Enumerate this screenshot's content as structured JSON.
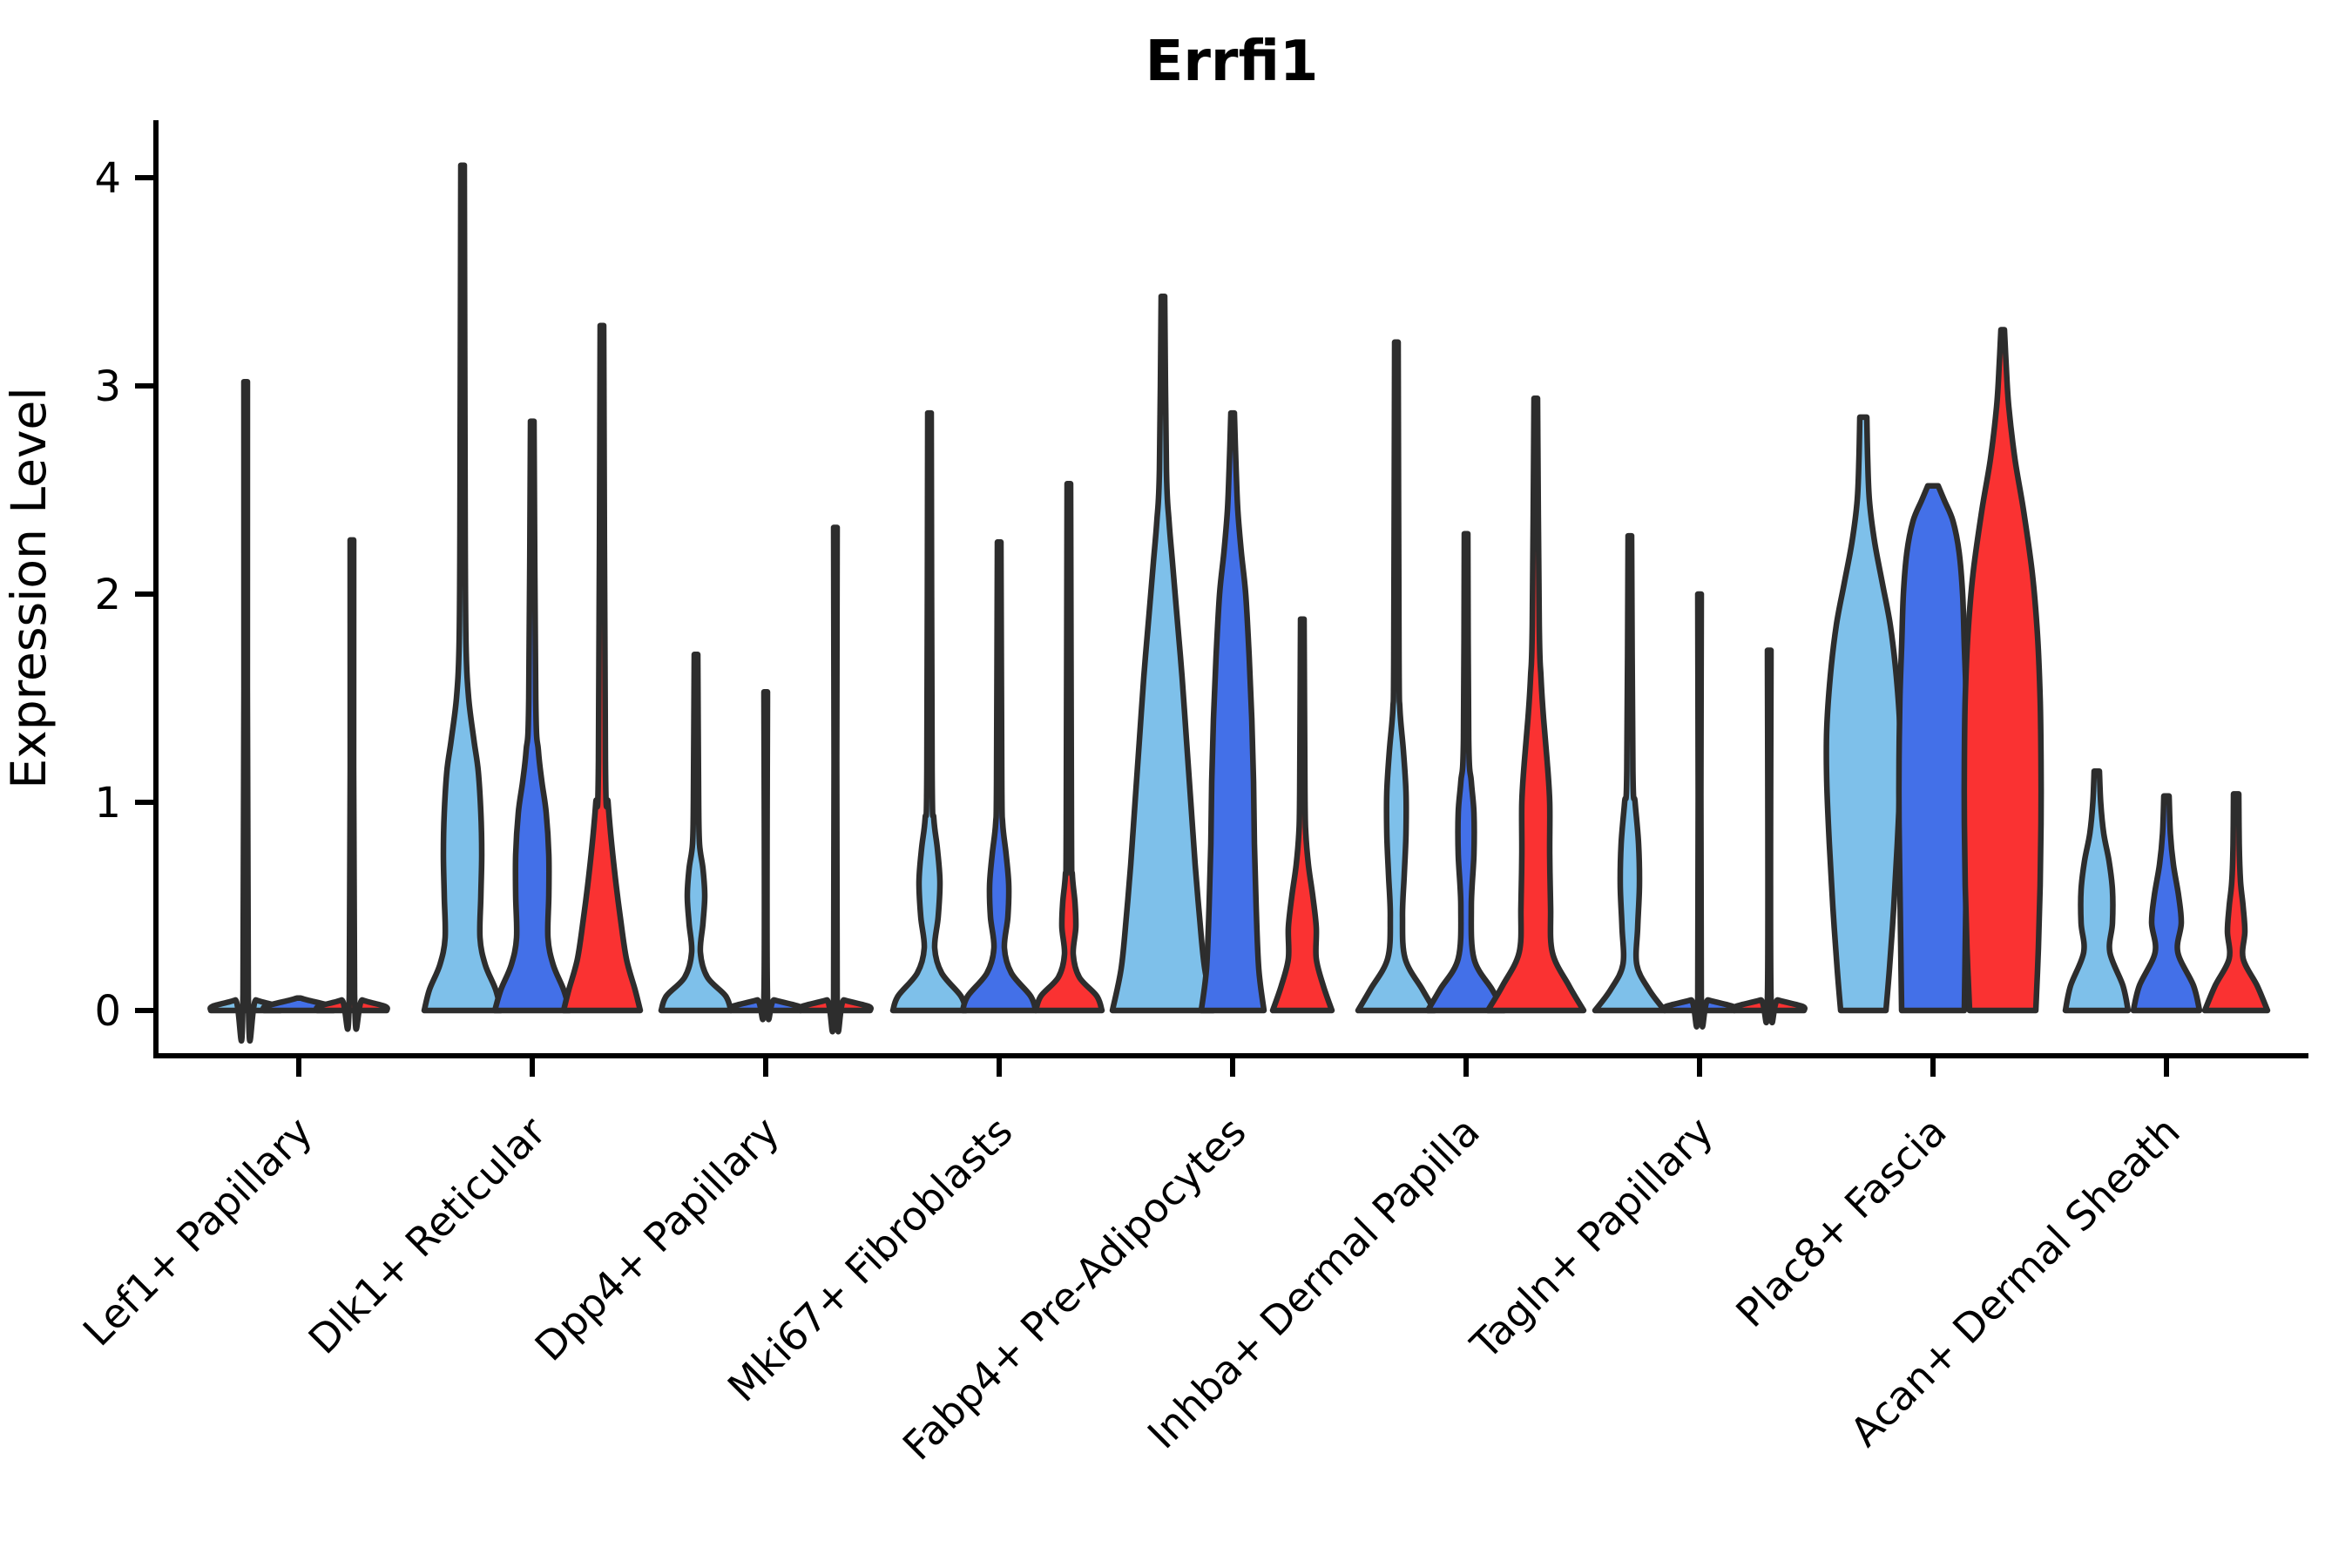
{
  "chart_data": {
    "type": "violin",
    "title": "Errfi1",
    "ylabel": "Expression Level",
    "xlabel": "",
    "ylim": [
      -0.22,
      4.3
    ],
    "yticks": [
      0,
      1,
      2,
      3,
      4
    ],
    "grid": false,
    "legend": "none",
    "categories": [
      "Lef1+ Papillary",
      "Dlk1+ Reticular",
      "Dpp4+ Papillary",
      "Mki67+ Fibroblasts",
      "Fabp4+ Pre-Adipocytes",
      "Inhba+ Dermal Papilla",
      "Tagln+ Papillary",
      "Plac8+ Fascia",
      "Acan+ Dermal Sheath"
    ],
    "series": [
      {
        "name": "light-blue",
        "color": "#7EC0EA",
        "max_expression": [
          3.02,
          4.06,
          1.71,
          2.87,
          3.43,
          3.21,
          2.28,
          2.85,
          1.15
        ]
      },
      {
        "name": "blue",
        "color": "#4370E8",
        "max_expression": [
          0.06,
          2.83,
          1.53,
          2.25,
          2.87,
          2.29,
          2.0,
          2.52,
          1.03
        ]
      },
      {
        "name": "red",
        "color": "#FA3232",
        "max_expression": [
          2.26,
          3.29,
          2.32,
          2.53,
          1.88,
          2.94,
          1.73,
          3.27,
          1.04
        ]
      }
    ],
    "violin_profiles_note": "each violin = list of [expression_value, half_width_px] from bottom (0) to max",
    "profiles": [
      [
        [
          [
            0,
            40
          ],
          [
            0.02,
            38
          ],
          [
            0.05,
            12
          ],
          [
            0.08,
            3
          ],
          [
            3.02,
            2
          ]
        ],
        [
          [
            0,
            40
          ],
          [
            0.02,
            38
          ],
          [
            0.05,
            10
          ],
          [
            0.06,
            2
          ]
        ],
        [
          [
            0,
            40
          ],
          [
            0.02,
            38
          ],
          [
            0.05,
            12
          ],
          [
            0.08,
            3
          ],
          [
            2.26,
            2
          ]
        ]
      ],
      [
        [
          [
            0,
            44
          ],
          [
            0.1,
            38
          ],
          [
            0.22,
            26
          ],
          [
            0.35,
            20
          ],
          [
            0.55,
            21
          ],
          [
            0.75,
            22
          ],
          [
            0.95,
            21
          ],
          [
            1.15,
            18
          ],
          [
            1.3,
            13
          ],
          [
            1.5,
            7
          ],
          [
            1.75,
            4
          ],
          [
            2.3,
            3
          ],
          [
            4.06,
            2
          ]
        ],
        [
          [
            0,
            43
          ],
          [
            0.1,
            36
          ],
          [
            0.22,
            24
          ],
          [
            0.35,
            18
          ],
          [
            0.55,
            19
          ],
          [
            0.75,
            19
          ],
          [
            0.95,
            16
          ],
          [
            1.1,
            11
          ],
          [
            1.25,
            7
          ],
          [
            1.5,
            4
          ],
          [
            2.83,
            2
          ]
        ],
        [
          [
            0,
            44
          ],
          [
            0.1,
            38
          ],
          [
            0.25,
            28
          ],
          [
            0.45,
            21
          ],
          [
            0.65,
            15
          ],
          [
            0.85,
            10
          ],
          [
            1.0,
            7
          ],
          [
            1.2,
            4
          ],
          [
            3.29,
            2
          ]
        ]
      ],
      [
        [
          [
            0,
            40
          ],
          [
            0.07,
            34
          ],
          [
            0.16,
            13
          ],
          [
            0.28,
            5
          ],
          [
            0.42,
            8
          ],
          [
            0.55,
            10
          ],
          [
            0.68,
            8
          ],
          [
            0.8,
            4
          ],
          [
            1.0,
            3
          ],
          [
            1.71,
            2
          ]
        ],
        [
          [
            0,
            40
          ],
          [
            0.02,
            38
          ],
          [
            0.05,
            10
          ],
          [
            0.07,
            2
          ],
          [
            1.53,
            2
          ]
        ],
        [
          [
            0,
            40
          ],
          [
            0.02,
            38
          ],
          [
            0.05,
            10
          ],
          [
            0.07,
            2
          ],
          [
            2.32,
            2
          ]
        ]
      ],
      [
        [
          [
            0,
            42
          ],
          [
            0.07,
            36
          ],
          [
            0.18,
            14
          ],
          [
            0.3,
            6
          ],
          [
            0.45,
            10
          ],
          [
            0.62,
            12
          ],
          [
            0.78,
            9
          ],
          [
            0.92,
            5
          ],
          [
            1.15,
            3
          ],
          [
            2.87,
            2
          ]
        ],
        [
          [
            0,
            42
          ],
          [
            0.07,
            36
          ],
          [
            0.18,
            14
          ],
          [
            0.3,
            6
          ],
          [
            0.45,
            10
          ],
          [
            0.6,
            11
          ],
          [
            0.75,
            8
          ],
          [
            0.9,
            4
          ],
          [
            1.1,
            3
          ],
          [
            2.25,
            2
          ]
        ],
        [
          [
            0,
            38
          ],
          [
            0.07,
            32
          ],
          [
            0.16,
            12
          ],
          [
            0.27,
            5
          ],
          [
            0.4,
            8
          ],
          [
            0.52,
            7
          ],
          [
            0.65,
            4
          ],
          [
            0.85,
            3
          ],
          [
            2.53,
            2
          ]
        ]
      ],
      [
        [
          [
            0,
            58
          ],
          [
            0.2,
            48
          ],
          [
            0.45,
            42
          ],
          [
            0.7,
            37
          ],
          [
            1.0,
            32
          ],
          [
            1.3,
            27
          ],
          [
            1.6,
            22
          ],
          [
            1.9,
            16
          ],
          [
            2.15,
            11
          ],
          [
            2.35,
            7
          ],
          [
            2.6,
            4
          ],
          [
            3.43,
            2
          ]
        ],
        [
          [
            0,
            36
          ],
          [
            0.2,
            30
          ],
          [
            0.5,
            27
          ],
          [
            0.8,
            25
          ],
          [
            1.1,
            24
          ],
          [
            1.4,
            22
          ],
          [
            1.7,
            19
          ],
          [
            2.0,
            15
          ],
          [
            2.2,
            10
          ],
          [
            2.4,
            6
          ],
          [
            2.6,
            4
          ],
          [
            2.87,
            2
          ]
        ],
        [
          [
            0,
            34
          ],
          [
            0.12,
            24
          ],
          [
            0.25,
            16
          ],
          [
            0.4,
            16
          ],
          [
            0.55,
            12
          ],
          [
            0.7,
            7
          ],
          [
            0.85,
            4
          ],
          [
            1.05,
            3
          ],
          [
            1.88,
            2
          ]
        ]
      ],
      [
        [
          [
            0,
            44
          ],
          [
            0.1,
            30
          ],
          [
            0.25,
            10
          ],
          [
            0.45,
            7
          ],
          [
            0.65,
            9
          ],
          [
            0.85,
            11
          ],
          [
            1.05,
            11
          ],
          [
            1.25,
            8
          ],
          [
            1.45,
            4
          ],
          [
            1.7,
            3
          ],
          [
            3.21,
            2
          ]
        ],
        [
          [
            0,
            44
          ],
          [
            0.1,
            30
          ],
          [
            0.25,
            9
          ],
          [
            0.5,
            6
          ],
          [
            0.75,
            9
          ],
          [
            0.95,
            9
          ],
          [
            1.1,
            6
          ],
          [
            1.3,
            3
          ],
          [
            2.29,
            2
          ]
        ],
        [
          [
            0,
            55
          ],
          [
            0.12,
            38
          ],
          [
            0.28,
            19
          ],
          [
            0.5,
            17
          ],
          [
            0.75,
            16
          ],
          [
            1.0,
            16
          ],
          [
            1.2,
            13
          ],
          [
            1.4,
            9
          ],
          [
            1.6,
            6
          ],
          [
            1.85,
            4
          ],
          [
            2.94,
            2
          ]
        ]
      ],
      [
        [
          [
            0,
            40
          ],
          [
            0.1,
            22
          ],
          [
            0.22,
            8
          ],
          [
            0.4,
            9
          ],
          [
            0.6,
            11
          ],
          [
            0.8,
            10
          ],
          [
            1.0,
            6
          ],
          [
            1.15,
            3.5
          ],
          [
            2.28,
            2
          ]
        ],
        [
          [
            0,
            40
          ],
          [
            0.02,
            38
          ],
          [
            0.05,
            10
          ],
          [
            0.07,
            2
          ],
          [
            2.0,
            2
          ]
        ],
        [
          [
            0,
            40
          ],
          [
            0.02,
            38
          ],
          [
            0.05,
            10
          ],
          [
            0.07,
            2
          ],
          [
            1.73,
            2
          ]
        ]
      ],
      [
        [
          [
            0,
            26
          ],
          [
            0.2,
            30
          ],
          [
            0.5,
            35
          ],
          [
            0.8,
            39
          ],
          [
            1.1,
            42
          ],
          [
            1.35,
            42
          ],
          [
            1.6,
            38
          ],
          [
            1.85,
            31
          ],
          [
            2.05,
            22
          ],
          [
            2.25,
            13
          ],
          [
            2.45,
            7
          ],
          [
            2.65,
            5
          ],
          [
            2.85,
            4
          ]
        ],
        [
          [
            0,
            36
          ],
          [
            0.3,
            37
          ],
          [
            0.6,
            38
          ],
          [
            0.9,
            39
          ],
          [
            1.2,
            39
          ],
          [
            1.5,
            38
          ],
          [
            1.75,
            36
          ],
          [
            2.0,
            34
          ],
          [
            2.2,
            30
          ],
          [
            2.35,
            23
          ],
          [
            2.45,
            13
          ],
          [
            2.52,
            6
          ]
        ],
        [
          [
            0,
            38
          ],
          [
            0.3,
            41
          ],
          [
            0.6,
            43
          ],
          [
            0.9,
            44
          ],
          [
            1.2,
            44
          ],
          [
            1.5,
            43
          ],
          [
            1.8,
            40
          ],
          [
            2.1,
            34
          ],
          [
            2.4,
            24
          ],
          [
            2.65,
            14
          ],
          [
            2.9,
            7
          ],
          [
            3.1,
            4
          ],
          [
            3.27,
            2
          ]
        ]
      ],
      [
        [
          [
            0,
            36
          ],
          [
            0.12,
            30
          ],
          [
            0.28,
            15
          ],
          [
            0.42,
            18
          ],
          [
            0.58,
            18
          ],
          [
            0.72,
            14
          ],
          [
            0.85,
            8
          ],
          [
            1.0,
            4.5
          ],
          [
            1.15,
            3
          ]
        ],
        [
          [
            0,
            38
          ],
          [
            0.12,
            31
          ],
          [
            0.28,
            13
          ],
          [
            0.42,
            17
          ],
          [
            0.55,
            14
          ],
          [
            0.7,
            8
          ],
          [
            0.85,
            4.5
          ],
          [
            1.03,
            3
          ]
        ],
        [
          [
            0,
            36
          ],
          [
            0.12,
            24
          ],
          [
            0.25,
            8
          ],
          [
            0.38,
            10
          ],
          [
            0.5,
            8
          ],
          [
            0.62,
            5
          ],
          [
            0.8,
            3.5
          ],
          [
            1.04,
            3
          ]
        ]
      ]
    ],
    "colors": {
      "violin_fill_1": "#7EC0EA",
      "violin_fill_2": "#4370E8",
      "violin_fill_3": "#FA3232",
      "violin_outline": "#2d2d2d",
      "axis": "#000000",
      "background": "#ffffff"
    }
  }
}
